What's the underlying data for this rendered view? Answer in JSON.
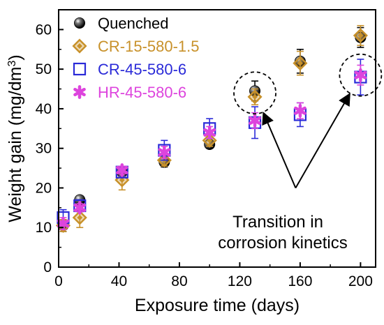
{
  "chart_data": {
    "type": "scatter",
    "xlabel": "Exposure time (days)",
    "ylabel": "Weight gain (mg/dm³)",
    "ylabel_main": "Weight gain (mg/dm",
    "ylabel_sup": "3",
    "ylabel_close": ")",
    "xlim": [
      0,
      210
    ],
    "ylim": [
      0,
      65
    ],
    "xticks": [
      0,
      40,
      80,
      120,
      160,
      200
    ],
    "yticks": [
      0,
      10,
      20,
      30,
      40,
      50,
      60
    ],
    "xtick_labels": [
      "0",
      "40",
      "80",
      "120",
      "160",
      "200"
    ],
    "ytick_labels": [
      "0",
      "10",
      "20",
      "30",
      "40",
      "50",
      "60"
    ],
    "legend_position": "top-left",
    "series": [
      {
        "name": "Quenched",
        "marker": "sphere",
        "color": "#000000",
        "points": [
          {
            "x": 3,
            "y": 10.5,
            "err": 1.5
          },
          {
            "x": 14,
            "y": 17.0,
            "err": 1.0
          },
          {
            "x": 42,
            "y": 24.0,
            "err": 1.2
          },
          {
            "x": 70,
            "y": 26.5,
            "err": 1.2
          },
          {
            "x": 100,
            "y": 31.0,
            "err": 1.0
          },
          {
            "x": 130,
            "y": 44.5,
            "err": 2.5
          },
          {
            "x": 160,
            "y": 52.0,
            "err": 3.0
          },
          {
            "x": 200,
            "y": 58.0,
            "err": 2.5
          }
        ]
      },
      {
        "name": "CR-15-580-1.5",
        "marker": "diamond",
        "color": "#c8912a",
        "points": [
          {
            "x": 3,
            "y": 10.5,
            "err": 1.5
          },
          {
            "x": 14,
            "y": 12.5,
            "err": 2.5
          },
          {
            "x": 42,
            "y": 22.0,
            "err": 2.5
          },
          {
            "x": 70,
            "y": 27.0,
            "err": 1.5
          },
          {
            "x": 100,
            "y": 32.0,
            "err": 1.5
          },
          {
            "x": 130,
            "y": 43.0,
            "err": 2.0
          },
          {
            "x": 160,
            "y": 51.5,
            "err": 3.0
          },
          {
            "x": 200,
            "y": 58.5,
            "err": 2.5
          }
        ]
      },
      {
        "name": "CR-45-580-6",
        "marker": "open-square",
        "color": "#2a2ad8",
        "points": [
          {
            "x": 3,
            "y": 12.5,
            "err": 2.0
          },
          {
            "x": 14,
            "y": 15.5,
            "err": 1.5
          },
          {
            "x": 42,
            "y": 24.0,
            "err": 1.0
          },
          {
            "x": 70,
            "y": 29.5,
            "err": 2.5
          },
          {
            "x": 100,
            "y": 35.0,
            "err": 2.5
          },
          {
            "x": 130,
            "y": 36.5,
            "err": 4.0
          },
          {
            "x": 160,
            "y": 38.5,
            "err": 3.0
          },
          {
            "x": 200,
            "y": 48.0,
            "err": 4.5
          }
        ]
      },
      {
        "name": "HR-45-580-6",
        "marker": "asterisk",
        "color": "#dd44dd",
        "points": [
          {
            "x": 3,
            "y": 11.0,
            "err": 1.5
          },
          {
            "x": 14,
            "y": 15.0,
            "err": 1.0
          },
          {
            "x": 42,
            "y": 24.5,
            "err": 1.0
          },
          {
            "x": 70,
            "y": 29.0,
            "err": 1.5
          },
          {
            "x": 100,
            "y": 34.0,
            "err": 1.5
          },
          {
            "x": 130,
            "y": 37.0,
            "err": 2.0
          },
          {
            "x": 160,
            "y": 39.5,
            "err": 2.0
          },
          {
            "x": 200,
            "y": 48.5,
            "err": 2.5
          }
        ]
      }
    ],
    "annotations": {
      "text_line1": "Transition in",
      "text_line2": "corrosion kinetics",
      "circles": [
        {
          "x": 130,
          "y": 44.0
        },
        {
          "x": 200,
          "y": 48.5
        }
      ],
      "arrow_origin": {
        "x": 157,
        "y": 20.0
      }
    }
  }
}
